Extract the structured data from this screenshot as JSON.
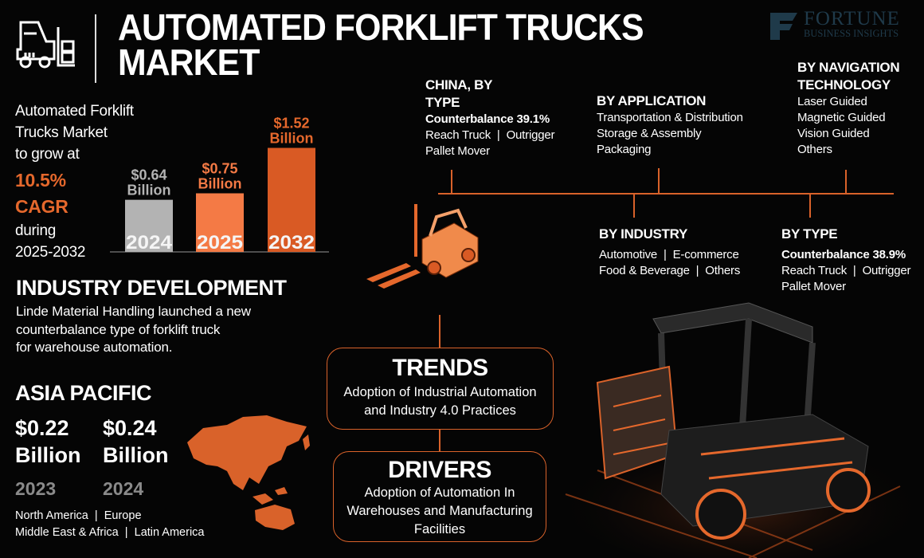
{
  "title": {
    "line1": "AUTOMATED FORKLIFT TRUCKS",
    "line2": "MARKET"
  },
  "logo": {
    "main": "FORTUNE",
    "sub": "BUSINESS INSIGHTS",
    "color": "#1f3a4a"
  },
  "intro": {
    "l1": "Automated Forklift",
    "l2": "Trucks Market",
    "l3": "to grow at",
    "cagr_value": "10.5%",
    "cagr_label": "CAGR",
    "l4": "during",
    "period": "2025-2032"
  },
  "chart_data": {
    "type": "bar",
    "categories": [
      "2024",
      "2025",
      "2032"
    ],
    "values": [
      0.64,
      0.75,
      1.52
    ],
    "value_labels": [
      [
        "$0.64",
        "Billion"
      ],
      [
        "$0.75",
        "Billion"
      ],
      [
        "$1.52",
        "Billion"
      ]
    ],
    "colors": [
      "#b3b3b3",
      "#f47a45",
      "#d95a24"
    ],
    "label_colors": [
      "#b3b3b3",
      "#f47a45",
      "#e5682c"
    ],
    "unit": "USD Billion",
    "grid": false
  },
  "industry_development": {
    "heading": "INDUSTRY DEVELOPMENT",
    "lines": [
      "Linde Material Handling launched a new",
      "counterbalance type of forklift truck",
      "for warehouse automation."
    ]
  },
  "asia_pacific": {
    "heading": "ASIA PACIFIC",
    "values": [
      {
        "amount": "$0.22",
        "unit": "Billion",
        "year": "2023"
      },
      {
        "amount": "$0.24",
        "unit": "Billion",
        "year": "2024"
      }
    ],
    "regions": [
      "North America  |  Europe",
      "Middle East & Africa  |  Latin America"
    ]
  },
  "segments": {
    "china": {
      "heading": [
        "CHINA, BY",
        "TYPE"
      ],
      "highlight": "Counterbalance 39.1%",
      "items": [
        "Reach Truck  |  Outrigger",
        "Pallet Mover"
      ]
    },
    "application": {
      "heading": "BY APPLICATION",
      "items": [
        "Transportation & Distribution",
        "Storage & Assembly",
        "Packaging"
      ]
    },
    "navigation": {
      "heading": [
        "BY NAVIGATION",
        "TECHNOLOGY"
      ],
      "items": [
        "Laser Guided",
        "Magnetic Guided",
        "Vision Guided",
        "Others"
      ]
    },
    "industry": {
      "heading": "BY INDUSTRY",
      "items": [
        "Automotive  |  E-commerce",
        "Food & Beverage  |  Others"
      ]
    },
    "type": {
      "heading": "BY TYPE",
      "highlight": "Counterbalance 38.9%",
      "items": [
        "Reach Truck  |  Outrigger",
        "Pallet Mover"
      ]
    }
  },
  "trends": {
    "heading": "TRENDS",
    "lines": [
      "Adoption of Industrial Automation",
      "and Industry 4.0 Practices"
    ]
  },
  "drivers": {
    "heading": "DRIVERS",
    "lines": [
      "Adoption of Automation In",
      "Warehouses and Manufacturing",
      "Facilities"
    ]
  },
  "accent": "#d9622a"
}
